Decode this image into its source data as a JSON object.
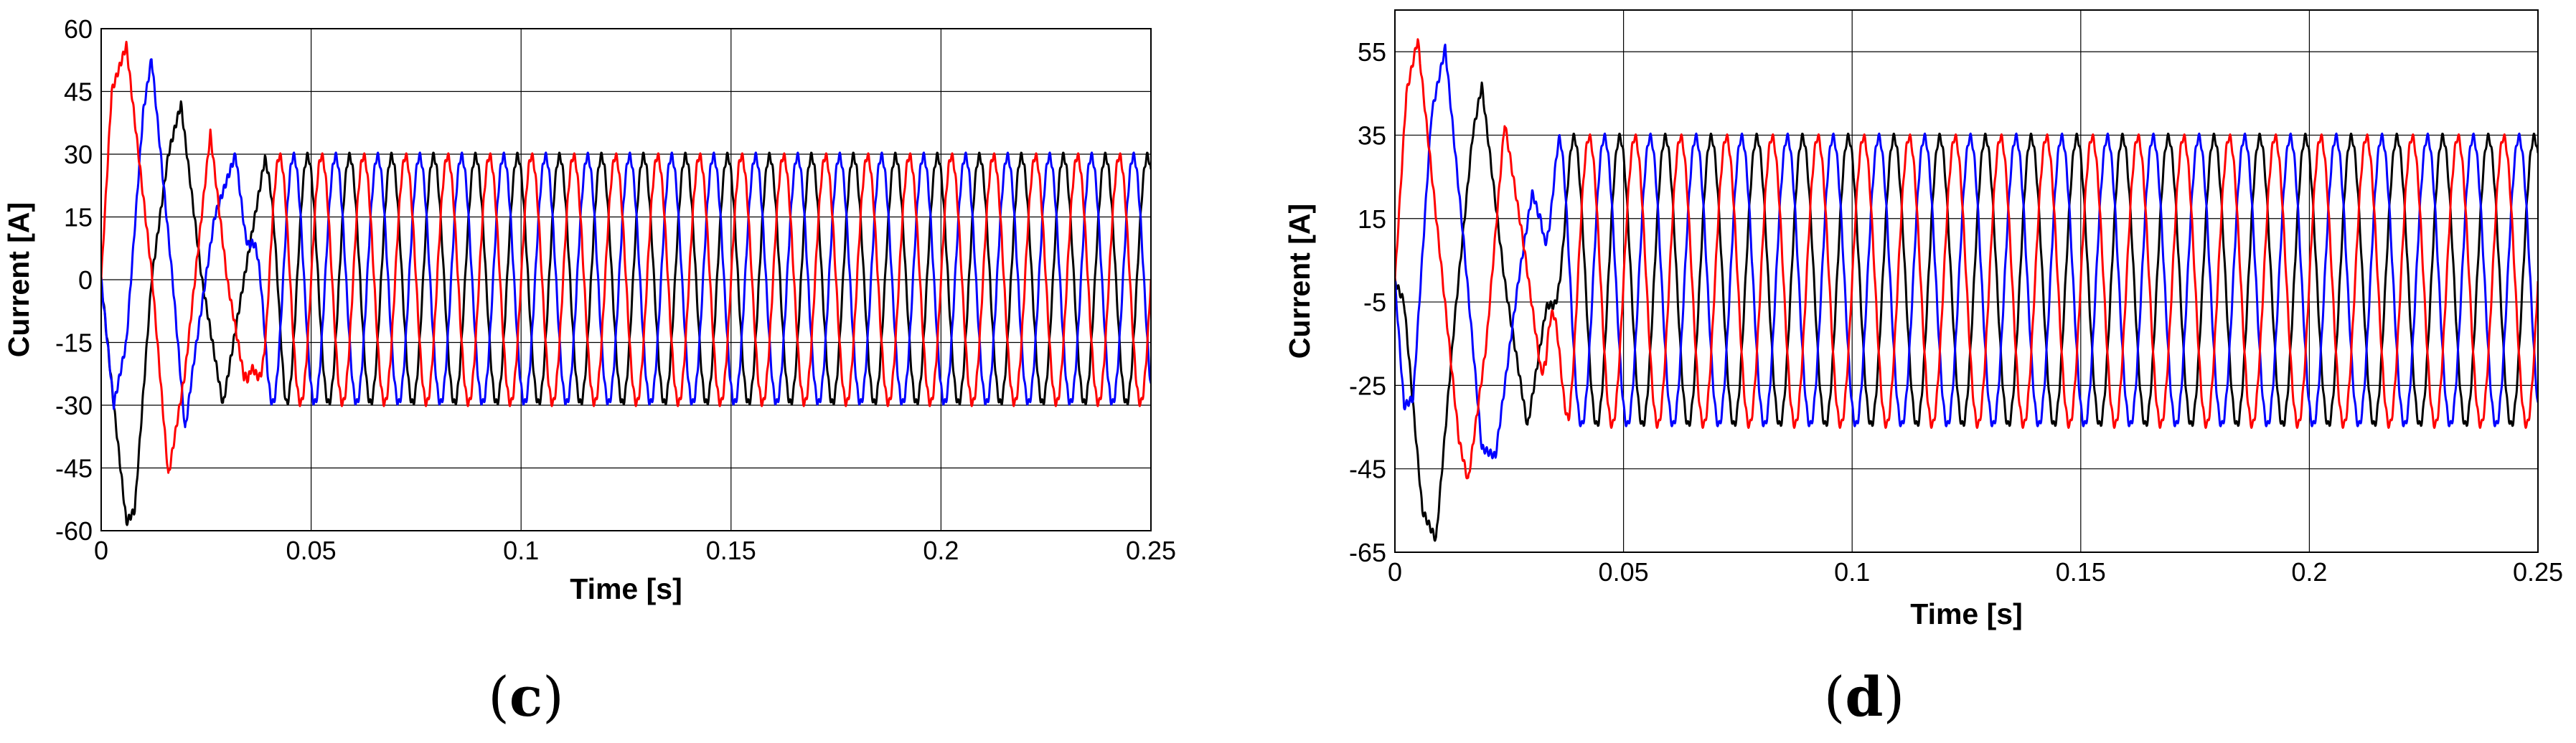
{
  "colors": {
    "red": "#ff0000",
    "blue": "#0000ff",
    "black": "#000000",
    "grid": "#000000"
  },
  "chart_data": [
    {
      "type": "line",
      "panel_label": "c",
      "xlabel": "Time [s]",
      "ylabel": "Current [A]",
      "xlim": [
        0,
        0.25
      ],
      "ylim": [
        -60,
        60
      ],
      "xticks": [
        0,
        0.05,
        0.1,
        0.15,
        0.2,
        0.25
      ],
      "xtick_labels": [
        "0",
        "0.05",
        "0.1",
        "0.15",
        "0.2",
        "0.25"
      ],
      "yticks": [
        60,
        45,
        30,
        15,
        0,
        -15,
        -30,
        -45,
        -60
      ],
      "ytick_labels": [
        "60",
        "45",
        "30",
        "15",
        "0",
        "-15",
        "-30",
        "-45",
        "-60"
      ],
      "grid": true,
      "frequency_hz": 100,
      "steady_amplitude": 29.5,
      "series": [
        {
          "color": "red",
          "phase_deg": 0,
          "x": [
            0,
            0.0025,
            0.006,
            0.012,
            0.016,
            0.02,
            0.026,
            0.03,
            0.035,
            0.04
          ],
          "y": [
            0,
            45,
            56,
            2,
            -47,
            -22,
            35,
            0,
            -29,
            0
          ]
        },
        {
          "color": "blue",
          "phase_deg": -120,
          "x": [
            0,
            0.003,
            0.006,
            0.01,
            0.012,
            0.017,
            0.02,
            0.022,
            0.027,
            0.032,
            0.035,
            0.04
          ],
          "y": [
            0,
            -30,
            -15,
            40,
            53,
            0,
            -36,
            -20,
            15,
            30,
            5,
            -28
          ]
        },
        {
          "color": "black",
          "phase_deg": 120,
          "x": [
            0,
            0.003,
            0.006,
            0.008,
            0.012,
            0.016,
            0.019,
            0.024,
            0.029,
            0.034,
            0.039,
            0.044
          ],
          "y": [
            0,
            -30,
            -58,
            -55,
            0,
            30,
            42,
            0,
            -30,
            0,
            29,
            0
          ]
        }
      ]
    },
    {
      "type": "line",
      "panel_label": "d",
      "xlabel": "Time [s]",
      "ylabel": "Current [A]",
      "xlim": [
        0,
        0.25
      ],
      "ylim": [
        -65,
        65
      ],
      "xticks": [
        0,
        0.05,
        0.1,
        0.15,
        0.2,
        0.25
      ],
      "xtick_labels": [
        "0",
        "0.05",
        "0.1",
        "0.15",
        "0.2",
        "0.25"
      ],
      "yticks": [
        55,
        35,
        15,
        -5,
        -25,
        -45,
        -65
      ],
      "ytick_labels": [
        "55",
        "35",
        "15",
        "-5",
        "-25",
        "-45",
        "-65"
      ],
      "grid": true,
      "frequency_hz": 100,
      "steady_amplitude": 34.5,
      "series": [
        {
          "color": "red",
          "phase_deg": 0,
          "x": [
            0,
            0.0025,
            0.005,
            0.01,
            0.014,
            0.016,
            0.02,
            0.024,
            0.028,
            0.033,
            0.038
          ],
          "y": [
            0,
            45,
            58,
            5,
            -38,
            -48,
            -15,
            38,
            10,
            -30,
            0
          ]
        },
        {
          "color": "blue",
          "phase_deg": -120,
          "x": [
            0,
            0.002,
            0.004,
            0.008,
            0.011,
            0.015,
            0.019,
            0.022,
            0.027,
            0.032,
            0.036
          ],
          "y": [
            0,
            -30,
            -28,
            40,
            56,
            10,
            -40,
            -42,
            0,
            35,
            0
          ]
        },
        {
          "color": "black",
          "phase_deg": 120,
          "x": [
            0,
            0.002,
            0.006,
            0.009,
            0.013,
            0.017,
            0.019,
            0.024,
            0.029,
            0.034,
            0.039
          ],
          "y": [
            0,
            -5,
            -55,
            -62,
            -10,
            35,
            47,
            0,
            -35,
            0,
            34
          ]
        }
      ]
    }
  ]
}
